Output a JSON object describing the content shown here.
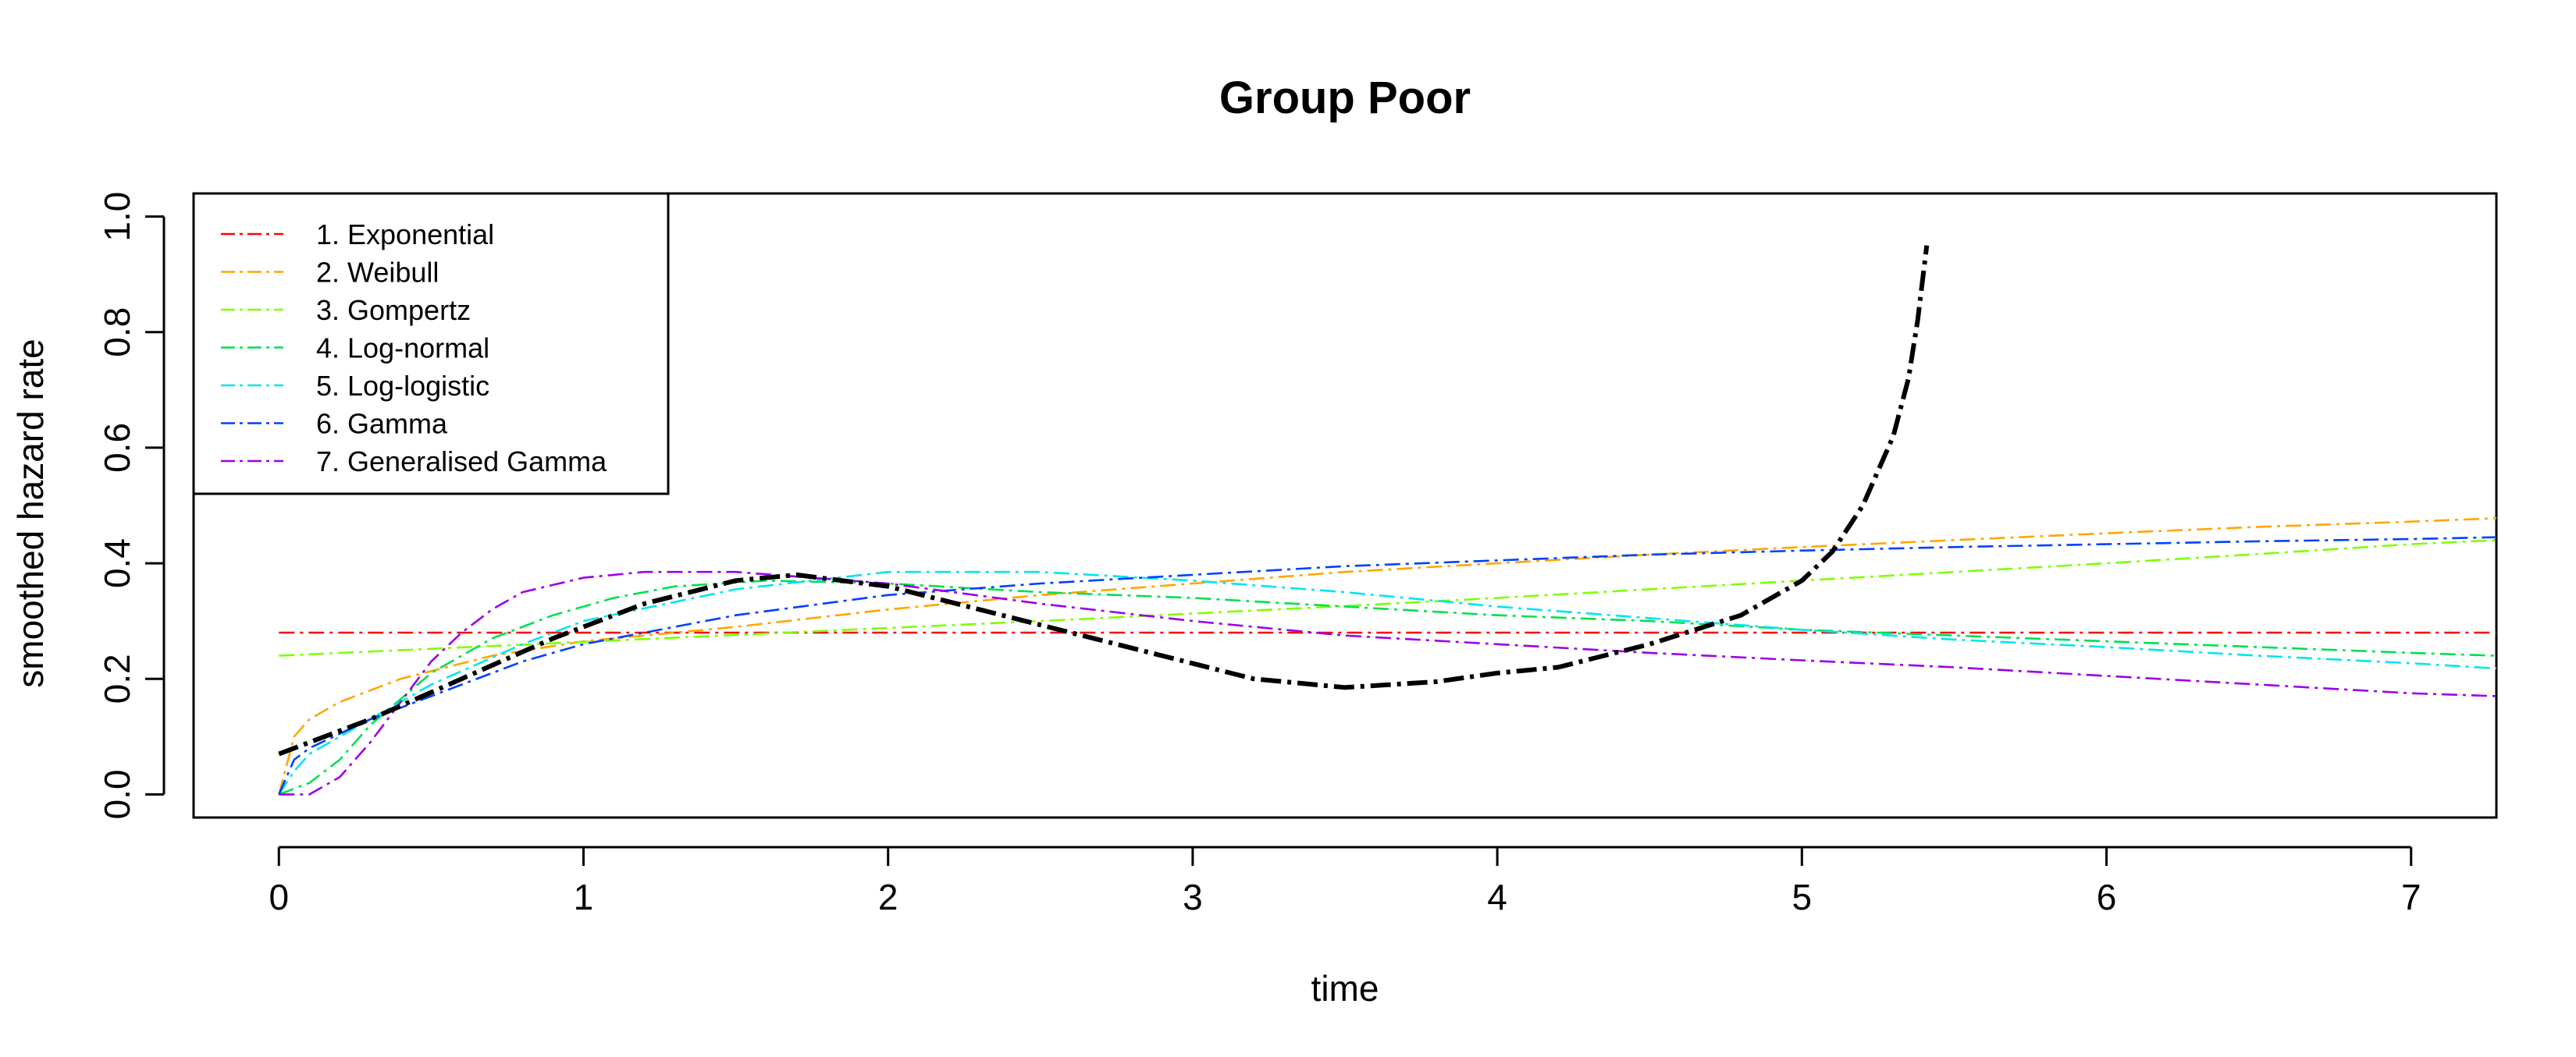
{
  "chart_data": {
    "type": "line",
    "title": "Group Poor",
    "xlabel": "time",
    "ylabel": "smoothed hazard rate",
    "xlim": [
      -0.28,
      7.28
    ],
    "ylim": [
      -0.04,
      1.04
    ],
    "xticks": [
      0,
      1,
      2,
      3,
      4,
      5,
      6,
      7
    ],
    "yticks": [
      0.0,
      0.2,
      0.4,
      0.6,
      0.8,
      1.0
    ],
    "xtick_labels": [
      "0",
      "1",
      "2",
      "3",
      "4",
      "5",
      "6",
      "7"
    ],
    "ytick_labels": [
      "0.0",
      "0.2",
      "0.4",
      "0.6",
      "0.8",
      "1.0"
    ],
    "grid": false,
    "legend_position": "top-left",
    "series": [
      {
        "name": "1. Exponential",
        "color": "#ff0000",
        "x": [
          0,
          7.28
        ],
        "y": [
          0.28,
          0.28
        ]
      },
      {
        "name": "2. Weibull",
        "color": "#ffa500",
        "x": [
          0,
          0.05,
          0.1,
          0.2,
          0.4,
          0.7,
          1.0,
          1.5,
          2.0,
          2.5,
          3.0,
          3.5,
          4.0,
          4.5,
          5.0,
          5.5,
          6.0,
          6.5,
          7.0,
          7.28
        ],
        "y": [
          0.0,
          0.1,
          0.13,
          0.16,
          0.2,
          0.24,
          0.265,
          0.29,
          0.32,
          0.345,
          0.365,
          0.385,
          0.4,
          0.415,
          0.428,
          0.44,
          0.452,
          0.463,
          0.472,
          0.478
        ]
      },
      {
        "name": "3. Gompertz",
        "color": "#7fff00",
        "x": [
          0,
          0.5,
          1.0,
          1.5,
          2.0,
          2.5,
          3.0,
          3.5,
          4.0,
          4.5,
          5.0,
          5.5,
          6.0,
          6.5,
          7.0,
          7.28
        ],
        "y": [
          0.24,
          0.252,
          0.264,
          0.276,
          0.288,
          0.3,
          0.313,
          0.326,
          0.34,
          0.355,
          0.37,
          0.385,
          0.4,
          0.416,
          0.433,
          0.44
        ]
      },
      {
        "name": "4. Log-normal",
        "color": "#00e050",
        "x": [
          0,
          0.1,
          0.2,
          0.3,
          0.5,
          0.7,
          0.9,
          1.1,
          1.3,
          1.6,
          2.0,
          2.5,
          3.0,
          3.5,
          4.0,
          4.5,
          5.0,
          5.5,
          6.0,
          6.5,
          7.0,
          7.28
        ],
        "y": [
          0.0,
          0.02,
          0.06,
          0.12,
          0.21,
          0.27,
          0.31,
          0.34,
          0.36,
          0.37,
          0.365,
          0.35,
          0.34,
          0.325,
          0.31,
          0.3,
          0.285,
          0.275,
          0.265,
          0.255,
          0.245,
          0.24
        ]
      },
      {
        "name": "5. Log-logistic",
        "color": "#00e5ee",
        "x": [
          0,
          0.05,
          0.1,
          0.3,
          0.5,
          0.8,
          1.0,
          1.5,
          2.0,
          2.5,
          3.0,
          3.5,
          4.0,
          4.5,
          5.0,
          5.5,
          6.0,
          6.5,
          7.0,
          7.28
        ],
        "y": [
          0.0,
          0.04,
          0.07,
          0.13,
          0.19,
          0.26,
          0.3,
          0.355,
          0.385,
          0.385,
          0.37,
          0.35,
          0.325,
          0.305,
          0.285,
          0.268,
          0.255,
          0.24,
          0.227,
          0.218
        ]
      },
      {
        "name": "6. Gamma",
        "color": "#0040ff",
        "x": [
          0,
          0.05,
          0.1,
          0.3,
          0.5,
          0.8,
          1.0,
          1.5,
          2.0,
          2.5,
          3.0,
          3.5,
          4.0,
          4.5,
          5.0,
          5.5,
          6.0,
          6.5,
          7.0,
          7.28
        ],
        "y": [
          0.0,
          0.06,
          0.08,
          0.13,
          0.17,
          0.23,
          0.26,
          0.31,
          0.345,
          0.365,
          0.38,
          0.395,
          0.405,
          0.415,
          0.422,
          0.428,
          0.433,
          0.438,
          0.442,
          0.445
        ]
      },
      {
        "name": "7. Generalised Gamma",
        "color": "#9b00e8",
        "x": [
          0,
          0.1,
          0.2,
          0.3,
          0.4,
          0.5,
          0.6,
          0.7,
          0.8,
          1.0,
          1.2,
          1.5,
          2.0,
          2.5,
          3.0,
          3.5,
          4.0,
          4.5,
          5.0,
          5.5,
          6.0,
          6.5,
          7.0,
          7.28
        ],
        "y": [
          0.0,
          0.0,
          0.03,
          0.09,
          0.16,
          0.23,
          0.28,
          0.32,
          0.35,
          0.375,
          0.385,
          0.385,
          0.365,
          0.33,
          0.3,
          0.275,
          0.26,
          0.245,
          0.232,
          0.22,
          0.205,
          0.19,
          0.175,
          0.17
        ]
      },
      {
        "name": "",
        "color": "#000000",
        "thick": true,
        "x": [
          0,
          0.3,
          0.6,
          0.9,
          1.2,
          1.5,
          1.7,
          2.0,
          2.3,
          2.6,
          2.9,
          3.2,
          3.5,
          3.8,
          4.0,
          4.2,
          4.5,
          4.8,
          5.0,
          5.1,
          5.2,
          5.3,
          5.35,
          5.38,
          5.41
        ],
        "y": [
          0.07,
          0.13,
          0.2,
          0.27,
          0.33,
          0.37,
          0.38,
          0.36,
          0.32,
          0.28,
          0.24,
          0.2,
          0.185,
          0.195,
          0.21,
          0.22,
          0.26,
          0.31,
          0.37,
          0.42,
          0.5,
          0.62,
          0.72,
          0.82,
          0.95
        ]
      }
    ]
  }
}
